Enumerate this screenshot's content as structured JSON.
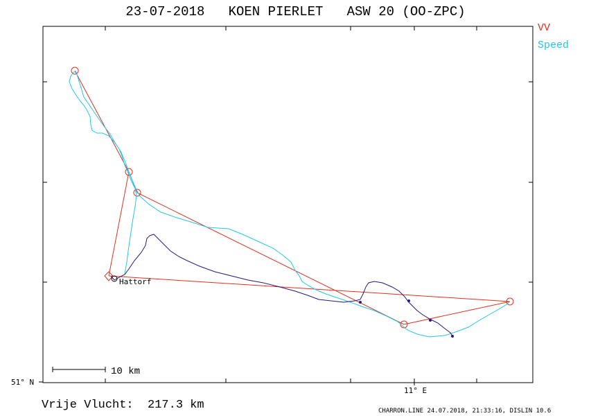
{
  "title": "23-07-2018   KOEN PIERLET   ASW 20 (OO-ZPC)",
  "legend": {
    "vv": {
      "label": "VV",
      "color": "#e0301e"
    },
    "speed": {
      "label": "Speed",
      "color": "#1fc8e8"
    }
  },
  "track_color": "#2a1480",
  "axis": {
    "lat_label": "51° N",
    "lon_label": "11° E"
  },
  "scale_bar": {
    "label": "10 km"
  },
  "airfield_label": "Hattorf",
  "distance_label": "Vrije Vlucht:  217.3 km",
  "footer": "CHARRON.LINE 24.07.2018, 21:33:16, DISLIN 10.6"
}
